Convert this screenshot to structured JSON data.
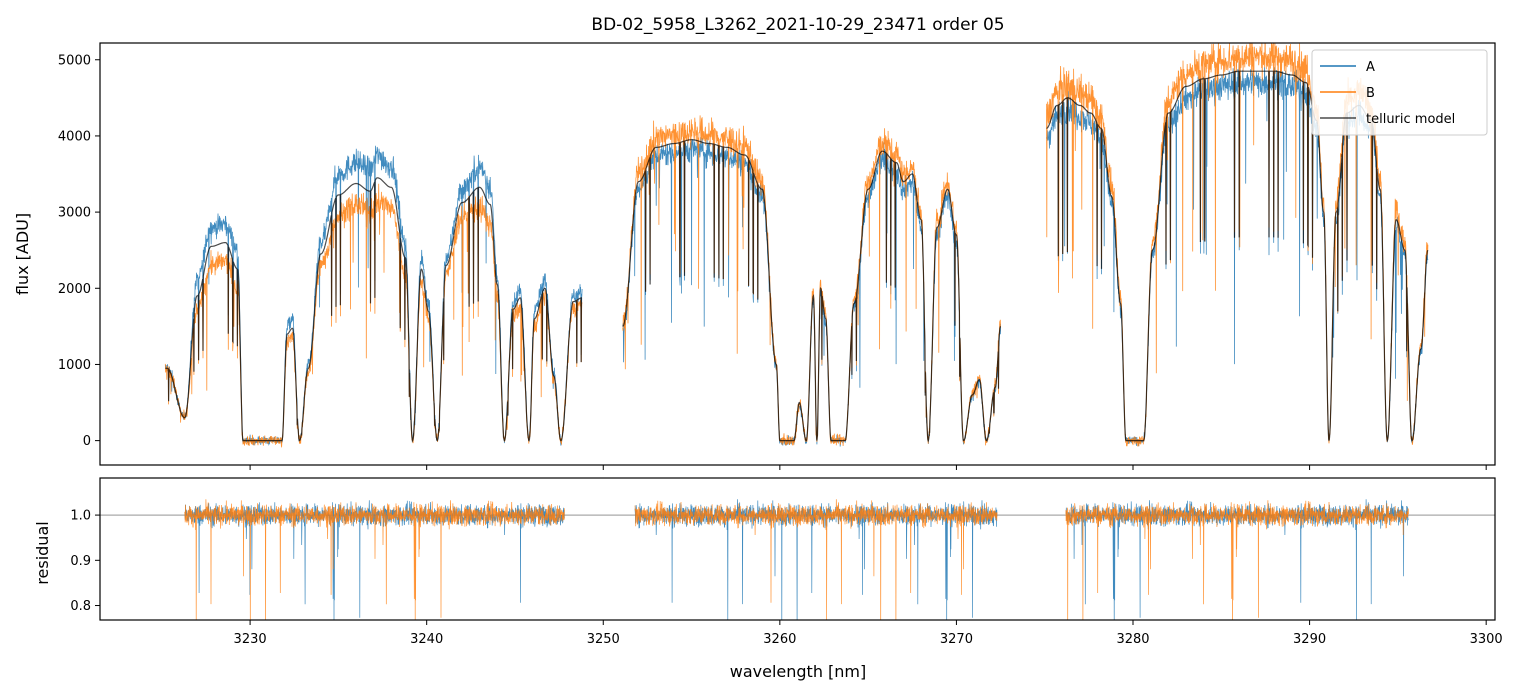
{
  "chart_data": [
    {
      "panel": "spectrum",
      "type": "line",
      "title": "BD-02_5958_L3262_2021-10-29_23471  order 05",
      "xlabel": "",
      "ylabel": "flux [ADU]",
      "xlim": [
        3221.5,
        3300.5
      ],
      "ylim": [
        -320,
        5220
      ],
      "xticks": [
        3230,
        3240,
        3250,
        3260,
        3270,
        3280,
        3290,
        3300
      ],
      "yticks": [
        0,
        1000,
        2000,
        3000,
        4000,
        5000
      ],
      "ytick_labels": [
        "0",
        "1000",
        "2000",
        "3000",
        "4000",
        "5000"
      ],
      "legend": {
        "placement": "top-right",
        "entries": [
          "A",
          "B",
          "telluric model"
        ]
      },
      "series": [
        {
          "name": "A",
          "color": "#1f77b4",
          "style": "noisy spectrum, high-frequency noise around model"
        },
        {
          "name": "B",
          "color": "#ff7f0e",
          "style": "noisy spectrum, high-frequency noise around model"
        },
        {
          "name": "telluric model",
          "color": "#000000",
          "style": "smooth model, alpha 0.7"
        }
      ],
      "segments": [
        {
          "x_range": [
            3225.2,
            3248.8
          ]
        },
        {
          "x_range": [
            3251.1,
            3272.5
          ]
        },
        {
          "x_range": [
            3275.1,
            3296.7
          ]
        }
      ],
      "envelope_knots": {
        "A": [
          [
            3225.3,
            950
          ],
          [
            3226.3,
            300
          ],
          [
            3227.0,
            2100
          ],
          [
            3227.8,
            2800
          ],
          [
            3228.6,
            2850
          ],
          [
            3229.3,
            2500
          ],
          [
            3229.6,
            0
          ],
          [
            3231.8,
            0
          ],
          [
            3232.1,
            1500
          ],
          [
            3232.4,
            1600
          ],
          [
            3232.8,
            0
          ],
          [
            3233.3,
            1000
          ],
          [
            3234.0,
            2600
          ],
          [
            3235.0,
            3500
          ],
          [
            3236.0,
            3650
          ],
          [
            3236.8,
            3550
          ],
          [
            3237.2,
            3750
          ],
          [
            3238.0,
            3600
          ],
          [
            3238.8,
            2600
          ],
          [
            3239.2,
            0
          ],
          [
            3239.7,
            2400
          ],
          [
            3240.1,
            1800
          ],
          [
            3240.6,
            0
          ],
          [
            3241.1,
            2400
          ],
          [
            3242.0,
            3300
          ],
          [
            3243.0,
            3600
          ],
          [
            3243.6,
            3350
          ],
          [
            3244.0,
            2200
          ],
          [
            3244.4,
            0
          ],
          [
            3244.9,
            1800
          ],
          [
            3245.3,
            2000
          ],
          [
            3245.8,
            0
          ],
          [
            3246.1,
            1700
          ],
          [
            3246.7,
            2100
          ],
          [
            3247.2,
            900
          ],
          [
            3247.6,
            0
          ],
          [
            3248.3,
            1900
          ],
          [
            3248.8,
            1950
          ]
        ],
        "B": [
          [
            3225.3,
            950
          ],
          [
            3226.3,
            300
          ],
          [
            3227.0,
            1700
          ],
          [
            3227.8,
            2300
          ],
          [
            3228.6,
            2350
          ],
          [
            3229.3,
            2000
          ],
          [
            3229.6,
            0
          ],
          [
            3231.8,
            0
          ],
          [
            3232.1,
            1300
          ],
          [
            3232.4,
            1350
          ],
          [
            3232.8,
            0
          ],
          [
            3233.3,
            900
          ],
          [
            3234.0,
            2300
          ],
          [
            3235.0,
            2950
          ],
          [
            3236.0,
            3100
          ],
          [
            3236.8,
            3000
          ],
          [
            3237.2,
            3150
          ],
          [
            3238.0,
            3050
          ],
          [
            3238.8,
            2200
          ],
          [
            3239.2,
            0
          ],
          [
            3239.7,
            2100
          ],
          [
            3240.1,
            1600
          ],
          [
            3240.6,
            0
          ],
          [
            3241.1,
            2200
          ],
          [
            3242.0,
            2950
          ],
          [
            3243.0,
            3050
          ],
          [
            3243.6,
            2850
          ],
          [
            3244.0,
            1900
          ],
          [
            3244.4,
            0
          ],
          [
            3244.9,
            1650
          ],
          [
            3245.3,
            1750
          ],
          [
            3245.8,
            0
          ],
          [
            3246.1,
            1500
          ],
          [
            3246.7,
            1900
          ],
          [
            3247.2,
            800
          ],
          [
            3247.6,
            0
          ],
          [
            3248.3,
            1750
          ],
          [
            3248.8,
            1800
          ]
        ],
        "segment2": [
          [
            3251.1,
            1500
          ],
          [
            3252.0,
            3400
          ],
          [
            3253.0,
            3850
          ],
          [
            3254.0,
            3900
          ],
          [
            3255.0,
            3950
          ],
          [
            3256.0,
            3900
          ],
          [
            3257.0,
            3850
          ],
          [
            3258.0,
            3750
          ],
          [
            3259.0,
            3300
          ],
          [
            3259.8,
            1000
          ],
          [
            3260.0,
            0
          ],
          [
            3260.8,
            0
          ],
          [
            3261.1,
            500
          ],
          [
            3261.5,
            0
          ],
          [
            3261.9,
            1900
          ],
          [
            3262.1,
            0
          ],
          [
            3262.3,
            2000
          ],
          [
            3262.6,
            1600
          ],
          [
            3262.9,
            0
          ],
          [
            3263.7,
            0
          ],
          [
            3264.2,
            1800
          ],
          [
            3265.0,
            3300
          ],
          [
            3265.8,
            3800
          ],
          [
            3266.6,
            3650
          ],
          [
            3267.0,
            3400
          ],
          [
            3267.5,
            3500
          ],
          [
            3268.0,
            2900
          ],
          [
            3268.4,
            0
          ],
          [
            3268.9,
            2800
          ],
          [
            3269.5,
            3300
          ],
          [
            3270.0,
            2700
          ],
          [
            3270.4,
            0
          ],
          [
            3270.9,
            600
          ],
          [
            3271.3,
            800
          ],
          [
            3271.7,
            0
          ],
          [
            3272.2,
            700
          ],
          [
            3272.5,
            1500
          ]
        ],
        "segment3": [
          [
            3275.1,
            4100
          ],
          [
            3275.7,
            4400
          ],
          [
            3276.3,
            4500
          ],
          [
            3277.0,
            4400
          ],
          [
            3277.6,
            4300
          ],
          [
            3278.2,
            4100
          ],
          [
            3278.8,
            3200
          ],
          [
            3279.3,
            1800
          ],
          [
            3279.6,
            0
          ],
          [
            3280.6,
            0
          ],
          [
            3281.1,
            2500
          ],
          [
            3282.0,
            4300
          ],
          [
            3283.0,
            4650
          ],
          [
            3284.0,
            4750
          ],
          [
            3285.0,
            4800
          ],
          [
            3286.0,
            4850
          ],
          [
            3287.0,
            4850
          ],
          [
            3288.0,
            4850
          ],
          [
            3289.0,
            4800
          ],
          [
            3289.8,
            4700
          ],
          [
            3290.4,
            4200
          ],
          [
            3290.8,
            3000
          ],
          [
            3291.1,
            0
          ],
          [
            3291.5,
            3000
          ],
          [
            3292.1,
            4300
          ],
          [
            3292.8,
            4400
          ],
          [
            3293.5,
            4200
          ],
          [
            3294.0,
            3300
          ],
          [
            3294.4,
            0
          ],
          [
            3294.9,
            2900
          ],
          [
            3295.4,
            2500
          ],
          [
            3295.8,
            0
          ],
          [
            3296.3,
            1200
          ],
          [
            3296.7,
            2500
          ]
        ]
      }
    },
    {
      "panel": "residual",
      "type": "line",
      "title": "",
      "xlabel": "wavelength [nm]",
      "ylabel": "residual",
      "xlim": [
        3221.5,
        3300.5
      ],
      "ylim": [
        0.768,
        1.082
      ],
      "xticks": [
        3230,
        3240,
        3250,
        3260,
        3270,
        3280,
        3290,
        3300
      ],
      "xtick_labels": [
        "3230",
        "3240",
        "3250",
        "3260",
        "3270",
        "3280",
        "3290",
        "3300"
      ],
      "yticks": [
        0.8,
        0.9,
        1.0
      ],
      "ytick_labels": [
        "0.8",
        "0.9",
        "1.0"
      ],
      "reference_line": 1.0,
      "segments": [
        {
          "x_range": [
            3226.3,
            3247.8
          ]
        },
        {
          "x_range": [
            3251.8,
            3272.3
          ]
        },
        {
          "x_range": [
            3276.2,
            3295.6
          ]
        }
      ],
      "series": [
        {
          "name": "A",
          "color": "#1f77b4"
        },
        {
          "name": "B",
          "color": "#ff7f0e"
        }
      ]
    }
  ]
}
